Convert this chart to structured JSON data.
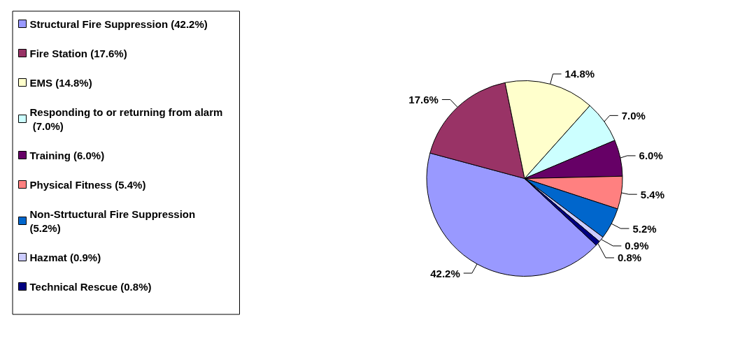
{
  "chart_data": {
    "type": "pie",
    "categories": [
      "Structural Fire Suppression (42.2%)",
      "Fire Station (17.6%)",
      "EMS (14.8%)",
      "Responding to or returning from alarm (7.0%)",
      "Training (6.0%)",
      "Physical Fitness (5.4%)",
      "Non-Strtuctural Fire Suppression (5.2%)",
      "Hazmat (0.9%)",
      "Technical Rescue (0.8%)"
    ],
    "values": [
      42.2,
      17.6,
      14.8,
      7.0,
      6.0,
      5.4,
      5.2,
      0.9,
      0.8
    ],
    "value_labels": [
      "42.2%",
      "17.6%",
      "14.8%",
      "7.0%",
      "6.0%",
      "5.4%",
      "5.2%",
      "0.9%",
      "0.8%"
    ],
    "colors": [
      "#9999ff",
      "#993366",
      "#ffffcc",
      "#ccffff",
      "#660066",
      "#ff8080",
      "#0066cc",
      "#ccccff",
      "#000080"
    ],
    "legend": "left"
  }
}
